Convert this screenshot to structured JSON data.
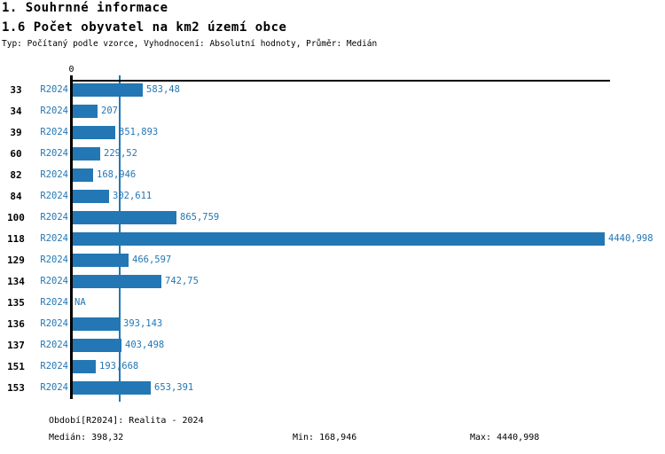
{
  "header": {
    "section_title": "1. Souhrnné informace",
    "chart_title": "1.6 Počet obyvatel na km2 území obce",
    "subtitle": "Typ: Počítaný podle vzorce, Vyhodnocení: Absolutní hodnoty, Průměr: Medián"
  },
  "chart_data": {
    "type": "bar",
    "orientation": "horizontal",
    "title": "1.6 Počet obyvatel na km2 území obce",
    "series_label": "R2024",
    "categories": [
      "33",
      "34",
      "39",
      "60",
      "82",
      "84",
      "100",
      "118",
      "129",
      "134",
      "135",
      "136",
      "137",
      "151",
      "153"
    ],
    "values": [
      583.48,
      207,
      351.893,
      229.52,
      168.946,
      302.611,
      865.759,
      4440.998,
      466.597,
      742.75,
      null,
      393.143,
      403.498,
      193.668,
      653.391
    ],
    "value_labels": [
      "583,48",
      "207",
      "351,893",
      "229,52",
      "168,946",
      "302,611",
      "865,759",
      "4440,998",
      "466,597",
      "742,75",
      "NA",
      "393,143",
      "403,498",
      "193,668",
      "653,391"
    ],
    "na_text": "NA",
    "x_zero_label": "0",
    "xlim": [
      0,
      4440.998
    ],
    "median_value": 398.32,
    "min_value": 168.946,
    "max_value": 4440.998,
    "bar_color": "#2377b4",
    "median_line_color": "#2377b4",
    "text_color": "#2377b4",
    "axis_color": "#000000",
    "grid": "median-line-only",
    "legend_position": "none"
  },
  "footer": {
    "period": "Období[R2024]: Realita - 2024",
    "median": "Medián: 398,32",
    "min": "Min: 168,946",
    "max": "Max: 4440,998"
  }
}
